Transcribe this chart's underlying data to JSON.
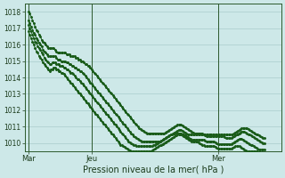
{
  "title": "Pression niveau de la mer( hPa )",
  "background_color": "#cde8e8",
  "grid_color": "#aacccc",
  "line_color": "#1a5c1a",
  "ylim": [
    1009.5,
    1018.5
  ],
  "yticks": [
    1010,
    1011,
    1012,
    1013,
    1014,
    1015,
    1016,
    1017,
    1018
  ],
  "xtick_labels": [
    "Mar",
    "Jeu",
    "Mer"
  ],
  "xtick_positions": [
    0,
    48,
    144
  ],
  "vline_positions": [
    0,
    48,
    144
  ],
  "xlim": [
    -3,
    192
  ],
  "n_points": 192,
  "series": [
    [
      1018.0,
      1017.9,
      1017.7,
      1017.5,
      1017.3,
      1017.1,
      1016.9,
      1016.8,
      1016.6,
      1016.5,
      1016.3,
      1016.2,
      1016.1,
      1016.0,
      1015.9,
      1015.8,
      1015.8,
      1015.8,
      1015.8,
      1015.8,
      1015.7,
      1015.6,
      1015.5,
      1015.5,
      1015.5,
      1015.5,
      1015.5,
      1015.5,
      1015.5,
      1015.4,
      1015.4,
      1015.4,
      1015.3,
      1015.3,
      1015.3,
      1015.3,
      1015.2,
      1015.2,
      1015.1,
      1015.1,
      1015.0,
      1015.0,
      1014.9,
      1014.8,
      1014.8,
      1014.7,
      1014.7,
      1014.6,
      1014.5,
      1014.4,
      1014.3,
      1014.2,
      1014.1,
      1014.0,
      1013.9,
      1013.8,
      1013.7,
      1013.6,
      1013.5,
      1013.4,
      1013.3,
      1013.2,
      1013.1,
      1013.0,
      1012.9,
      1012.8,
      1012.7,
      1012.6,
      1012.5,
      1012.4,
      1012.3,
      1012.2,
      1012.1,
      1012.0,
      1011.9,
      1011.8,
      1011.7,
      1011.6,
      1011.5,
      1011.4,
      1011.3,
      1011.2,
      1011.1,
      1011.0,
      1010.9,
      1010.85,
      1010.8,
      1010.75,
      1010.7,
      1010.65,
      1010.6,
      1010.6,
      1010.6,
      1010.6,
      1010.6,
      1010.6,
      1010.6,
      1010.6,
      1010.6,
      1010.6,
      1010.6,
      1010.6,
      1010.6,
      1010.6,
      1010.65,
      1010.7,
      1010.75,
      1010.8,
      1010.85,
      1010.9,
      1010.95,
      1011.0,
      1011.05,
      1011.1,
      1011.1,
      1011.1,
      1011.1,
      1011.05,
      1011.0,
      1010.95,
      1010.9,
      1010.85,
      1010.8,
      1010.75,
      1010.7,
      1010.65,
      1010.6,
      1010.6,
      1010.6,
      1010.6,
      1010.6,
      1010.6,
      1010.6,
      1010.55,
      1010.5,
      1010.5,
      1010.5,
      1010.5,
      1010.5,
      1010.5,
      1010.5,
      1010.5,
      1010.5,
      1010.5,
      1010.5,
      1010.5,
      1010.5,
      1010.5,
      1010.5,
      1010.5,
      1010.5,
      1010.5,
      1010.5,
      1010.5,
      1010.5,
      1010.55,
      1010.6,
      1010.65,
      1010.7,
      1010.75,
      1010.8,
      1010.85,
      1010.9,
      1010.9,
      1010.9,
      1010.9,
      1010.9,
      1010.85,
      1010.8,
      1010.75,
      1010.7,
      1010.65,
      1010.6,
      1010.55,
      1010.5,
      1010.45,
      1010.4,
      1010.35,
      1010.3,
      1010.3
    ],
    [
      1017.5,
      1017.3,
      1017.1,
      1016.9,
      1016.7,
      1016.6,
      1016.4,
      1016.3,
      1016.1,
      1016.0,
      1015.9,
      1015.7,
      1015.6,
      1015.5,
      1015.4,
      1015.3,
      1015.3,
      1015.3,
      1015.3,
      1015.3,
      1015.3,
      1015.2,
      1015.1,
      1015.1,
      1015.1,
      1015.0,
      1015.0,
      1015.0,
      1015.0,
      1014.9,
      1014.9,
      1014.8,
      1014.8,
      1014.7,
      1014.7,
      1014.6,
      1014.6,
      1014.5,
      1014.5,
      1014.4,
      1014.4,
      1014.3,
      1014.2,
      1014.1,
      1014.0,
      1013.9,
      1013.8,
      1013.7,
      1013.6,
      1013.5,
      1013.4,
      1013.3,
      1013.2,
      1013.1,
      1013.0,
      1012.9,
      1012.8,
      1012.7,
      1012.6,
      1012.5,
      1012.4,
      1012.3,
      1012.2,
      1012.1,
      1012.0,
      1011.9,
      1011.8,
      1011.7,
      1011.6,
      1011.5,
      1011.4,
      1011.3,
      1011.2,
      1011.1,
      1011.0,
      1010.9,
      1010.8,
      1010.7,
      1010.6,
      1010.5,
      1010.4,
      1010.35,
      1010.3,
      1010.25,
      1010.2,
      1010.15,
      1010.1,
      1010.1,
      1010.1,
      1010.1,
      1010.1,
      1010.1,
      1010.1,
      1010.1,
      1010.1,
      1010.1,
      1010.1,
      1010.1,
      1010.1,
      1010.1,
      1010.1,
      1010.15,
      1010.2,
      1010.25,
      1010.3,
      1010.35,
      1010.4,
      1010.45,
      1010.5,
      1010.55,
      1010.6,
      1010.65,
      1010.7,
      1010.75,
      1010.8,
      1010.8,
      1010.8,
      1010.75,
      1010.7,
      1010.65,
      1010.6,
      1010.55,
      1010.5,
      1010.5,
      1010.5,
      1010.5,
      1010.5,
      1010.5,
      1010.5,
      1010.5,
      1010.5,
      1010.5,
      1010.5,
      1010.5,
      1010.45,
      1010.4,
      1010.4,
      1010.4,
      1010.4,
      1010.4,
      1010.4,
      1010.4,
      1010.4,
      1010.4,
      1010.4,
      1010.4,
      1010.4,
      1010.4,
      1010.4,
      1010.35,
      1010.3,
      1010.3,
      1010.3,
      1010.3,
      1010.3,
      1010.35,
      1010.4,
      1010.45,
      1010.5,
      1010.55,
      1010.6,
      1010.65,
      1010.7,
      1010.7,
      1010.7,
      1010.65,
      1010.6,
      1010.55,
      1010.5,
      1010.45,
      1010.4,
      1010.35,
      1010.3,
      1010.25,
      1010.2,
      1010.15,
      1010.1,
      1010.05,
      1010.0,
      1010.0
    ],
    [
      1017.2,
      1017.0,
      1016.8,
      1016.6,
      1016.4,
      1016.2,
      1016.1,
      1015.9,
      1015.8,
      1015.7,
      1015.5,
      1015.4,
      1015.2,
      1015.1,
      1015.0,
      1014.9,
      1014.8,
      1014.8,
      1014.9,
      1014.9,
      1014.9,
      1014.8,
      1014.8,
      1014.8,
      1014.7,
      1014.7,
      1014.7,
      1014.6,
      1014.6,
      1014.5,
      1014.5,
      1014.4,
      1014.3,
      1014.3,
      1014.2,
      1014.1,
      1014.0,
      1013.9,
      1013.9,
      1013.8,
      1013.7,
      1013.6,
      1013.5,
      1013.4,
      1013.3,
      1013.2,
      1013.1,
      1013.0,
      1012.9,
      1012.8,
      1012.7,
      1012.6,
      1012.5,
      1012.4,
      1012.3,
      1012.2,
      1012.1,
      1012.0,
      1011.9,
      1011.8,
      1011.7,
      1011.6,
      1011.5,
      1011.4,
      1011.3,
      1011.2,
      1011.1,
      1011.0,
      1010.9,
      1010.8,
      1010.7,
      1010.6,
      1010.5,
      1010.4,
      1010.3,
      1010.2,
      1010.1,
      1010.05,
      1010.0,
      1009.95,
      1009.9,
      1009.85,
      1009.8,
      1009.8,
      1009.8,
      1009.8,
      1009.8,
      1009.8,
      1009.8,
      1009.8,
      1009.8,
      1009.8,
      1009.8,
      1009.8,
      1009.8,
      1009.85,
      1009.9,
      1009.95,
      1010.0,
      1010.05,
      1010.1,
      1010.15,
      1010.2,
      1010.25,
      1010.3,
      1010.35,
      1010.4,
      1010.45,
      1010.5,
      1010.55,
      1010.6,
      1010.6,
      1010.6,
      1010.6,
      1010.6,
      1010.6,
      1010.6,
      1010.55,
      1010.5,
      1010.45,
      1010.4,
      1010.35,
      1010.3,
      1010.25,
      1010.2,
      1010.2,
      1010.2,
      1010.2,
      1010.2,
      1010.2,
      1010.2,
      1010.2,
      1010.2,
      1010.2,
      1010.15,
      1010.1,
      1010.1,
      1010.1,
      1010.1,
      1010.1,
      1010.1,
      1010.1,
      1010.05,
      1010.0,
      1009.95,
      1009.95,
      1009.95,
      1009.95,
      1009.95,
      1009.95,
      1009.95,
      1009.95,
      1009.95,
      1009.95,
      1009.95,
      1010.0,
      1010.05,
      1010.1,
      1010.15,
      1010.2,
      1010.25,
      1010.25,
      1010.25,
      1010.2,
      1010.15,
      1010.1,
      1010.05,
      1010.0,
      1009.95,
      1009.9,
      1009.85,
      1009.8,
      1009.75,
      1009.7,
      1009.65,
      1009.6,
      1009.6,
      1009.6,
      1009.6,
      1009.6
    ],
    [
      1016.8,
      1016.6,
      1016.4,
      1016.2,
      1016.0,
      1015.8,
      1015.6,
      1015.5,
      1015.3,
      1015.2,
      1015.1,
      1014.9,
      1014.8,
      1014.7,
      1014.6,
      1014.5,
      1014.4,
      1014.5,
      1014.5,
      1014.6,
      1014.6,
      1014.5,
      1014.5,
      1014.4,
      1014.4,
      1014.3,
      1014.3,
      1014.2,
      1014.1,
      1014.0,
      1013.9,
      1013.8,
      1013.7,
      1013.6,
      1013.5,
      1013.4,
      1013.3,
      1013.2,
      1013.1,
      1013.0,
      1012.9,
      1012.8,
      1012.7,
      1012.6,
      1012.5,
      1012.4,
      1012.3,
      1012.2,
      1012.1,
      1012.0,
      1011.9,
      1011.8,
      1011.7,
      1011.6,
      1011.5,
      1011.4,
      1011.3,
      1011.2,
      1011.1,
      1011.0,
      1010.9,
      1010.8,
      1010.7,
      1010.6,
      1010.5,
      1010.4,
      1010.3,
      1010.2,
      1010.1,
      1010.0,
      1009.9,
      1009.85,
      1009.8,
      1009.75,
      1009.7,
      1009.65,
      1009.6,
      1009.55,
      1009.5,
      1009.5,
      1009.5,
      1009.5,
      1009.5,
      1009.5,
      1009.5,
      1009.5,
      1009.5,
      1009.5,
      1009.5,
      1009.5,
      1009.5,
      1009.5,
      1009.5,
      1009.5,
      1009.55,
      1009.6,
      1009.65,
      1009.7,
      1009.75,
      1009.8,
      1009.85,
      1009.9,
      1009.95,
      1010.0,
      1010.05,
      1010.1,
      1010.15,
      1010.2,
      1010.25,
      1010.3,
      1010.35,
      1010.4,
      1010.45,
      1010.5,
      1010.55,
      1010.55,
      1010.5,
      1010.45,
      1010.4,
      1010.35,
      1010.3,
      1010.25,
      1010.2,
      1010.15,
      1010.1,
      1010.1,
      1010.1,
      1010.1,
      1010.1,
      1010.05,
      1010.0,
      1009.95,
      1009.9,
      1009.85,
      1009.8,
      1009.8,
      1009.8,
      1009.8,
      1009.8,
      1009.8,
      1009.8,
      1009.8,
      1009.75,
      1009.7,
      1009.65,
      1009.65,
      1009.65,
      1009.65,
      1009.65,
      1009.65,
      1009.65,
      1009.65,
      1009.65,
      1009.65,
      1009.65,
      1009.7,
      1009.75,
      1009.8,
      1009.8,
      1009.8,
      1009.8,
      1009.75,
      1009.7,
      1009.65,
      1009.6,
      1009.55,
      1009.5,
      1009.5,
      1009.5,
      1009.5,
      1009.5,
      1009.5,
      1009.5,
      1009.5,
      1009.5,
      1009.45,
      1009.4,
      1009.4,
      1009.4,
      1009.4
    ]
  ]
}
